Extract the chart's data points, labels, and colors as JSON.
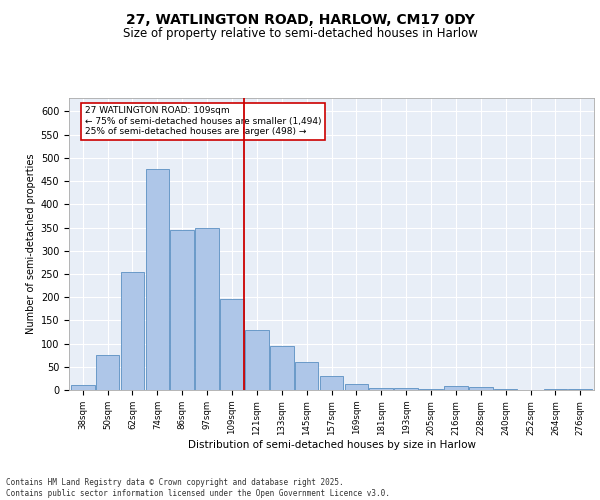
{
  "title1": "27, WATLINGTON ROAD, HARLOW, CM17 0DY",
  "title2": "Size of property relative to semi-detached houses in Harlow",
  "xlabel": "Distribution of semi-detached houses by size in Harlow",
  "ylabel": "Number of semi-detached properties",
  "categories": [
    "38sqm",
    "50sqm",
    "62sqm",
    "74sqm",
    "86sqm",
    "97sqm",
    "109sqm",
    "121sqm",
    "133sqm",
    "145sqm",
    "157sqm",
    "169sqm",
    "181sqm",
    "193sqm",
    "205sqm",
    "216sqm",
    "228sqm",
    "240sqm",
    "252sqm",
    "264sqm",
    "276sqm"
  ],
  "values": [
    10,
    75,
    255,
    475,
    345,
    350,
    195,
    130,
    95,
    60,
    30,
    12,
    5,
    5,
    3,
    8,
    7,
    3,
    1,
    2,
    2
  ],
  "bar_color": "#aec6e8",
  "bar_edge_color": "#5a8fc2",
  "vline_color": "#cc0000",
  "annotation_text": "27 WATLINGTON ROAD: 109sqm\n← 75% of semi-detached houses are smaller (1,494)\n25% of semi-detached houses are larger (498) →",
  "annotation_box_color": "#ffffff",
  "annotation_box_edge": "#cc0000",
  "ylim": [
    0,
    630
  ],
  "yticks": [
    0,
    50,
    100,
    150,
    200,
    250,
    300,
    350,
    400,
    450,
    500,
    550,
    600
  ],
  "background_color": "#e8eef7",
  "footer": "Contains HM Land Registry data © Crown copyright and database right 2025.\nContains public sector information licensed under the Open Government Licence v3.0.",
  "title1_fontsize": 10,
  "title2_fontsize": 8.5,
  "footer_fontsize": 5.5
}
